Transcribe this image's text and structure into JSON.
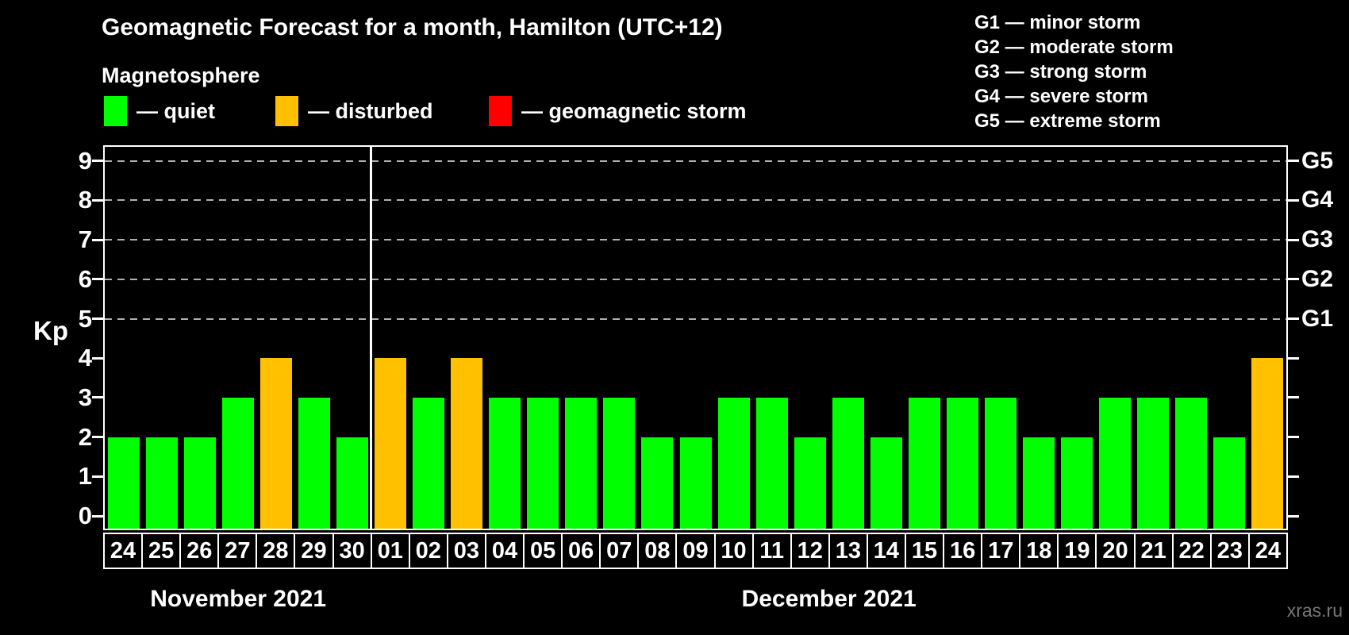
{
  "title": "Geomagnetic Forecast for a month, Hamilton (UTC+12)",
  "subtitle": "Magnetosphere",
  "watermark": "xras.ru",
  "colors": {
    "quiet": "#00ff00",
    "disturbed": "#ffc000",
    "storm": "#ff0000",
    "background": "#000000",
    "gridline": "#b0b0b0",
    "axis": "#ffffff",
    "watermark": "#777777"
  },
  "legend": {
    "items": [
      {
        "status": "quiet",
        "label": "— quiet"
      },
      {
        "status": "disturbed",
        "label": "— disturbed"
      },
      {
        "status": "storm",
        "label": "— geomagnetic storm"
      }
    ]
  },
  "g_legend": {
    "lines": [
      "G1 — minor storm",
      "G2 — moderate storm",
      "G3 — strong storm",
      "G4 — severe storm",
      "G5 — extreme storm"
    ]
  },
  "chart_data": {
    "type": "bar",
    "title": "Geomagnetic Forecast for a month, Hamilton (UTC+12)",
    "ylabel": "Kp",
    "ylim": [
      0,
      9
    ],
    "yticks": [
      0,
      1,
      2,
      3,
      4,
      5,
      6,
      7,
      8,
      9
    ],
    "grid": "horizontal dashed lines at Kp 5-9",
    "gridlines_at_kp": [
      5,
      6,
      7,
      8,
      9
    ],
    "right_axis_labels": [
      {
        "kp": 5,
        "label": "G1"
      },
      {
        "kp": 6,
        "label": "G2"
      },
      {
        "kp": 7,
        "label": "G3"
      },
      {
        "kp": 8,
        "label": "G4"
      },
      {
        "kp": 9,
        "label": "G5"
      }
    ],
    "legend_position": "top-left",
    "months": [
      {
        "label": "November 2021",
        "bars": [
          {
            "day": "24",
            "kp": 2,
            "status": "quiet"
          },
          {
            "day": "25",
            "kp": 2,
            "status": "quiet"
          },
          {
            "day": "26",
            "kp": 2,
            "status": "quiet"
          },
          {
            "day": "27",
            "kp": 3,
            "status": "quiet"
          },
          {
            "day": "28",
            "kp": 4,
            "status": "disturbed"
          },
          {
            "day": "29",
            "kp": 3,
            "status": "quiet"
          },
          {
            "day": "30",
            "kp": 2,
            "status": "quiet"
          }
        ]
      },
      {
        "label": "December 2021",
        "bars": [
          {
            "day": "01",
            "kp": 4,
            "status": "disturbed"
          },
          {
            "day": "02",
            "kp": 3,
            "status": "quiet"
          },
          {
            "day": "03",
            "kp": 4,
            "status": "disturbed"
          },
          {
            "day": "04",
            "kp": 3,
            "status": "quiet"
          },
          {
            "day": "05",
            "kp": 3,
            "status": "quiet"
          },
          {
            "day": "06",
            "kp": 3,
            "status": "quiet"
          },
          {
            "day": "07",
            "kp": 3,
            "status": "quiet"
          },
          {
            "day": "08",
            "kp": 2,
            "status": "quiet"
          },
          {
            "day": "09",
            "kp": 2,
            "status": "quiet"
          },
          {
            "day": "10",
            "kp": 3,
            "status": "quiet"
          },
          {
            "day": "11",
            "kp": 3,
            "status": "quiet"
          },
          {
            "day": "12",
            "kp": 2,
            "status": "quiet"
          },
          {
            "day": "13",
            "kp": 3,
            "status": "quiet"
          },
          {
            "day": "14",
            "kp": 2,
            "status": "quiet"
          },
          {
            "day": "15",
            "kp": 3,
            "status": "quiet"
          },
          {
            "day": "16",
            "kp": 3,
            "status": "quiet"
          },
          {
            "day": "17",
            "kp": 3,
            "status": "quiet"
          },
          {
            "day": "18",
            "kp": 2,
            "status": "quiet"
          },
          {
            "day": "19",
            "kp": 2,
            "status": "quiet"
          },
          {
            "day": "20",
            "kp": 3,
            "status": "quiet"
          },
          {
            "day": "21",
            "kp": 3,
            "status": "quiet"
          },
          {
            "day": "22",
            "kp": 3,
            "status": "quiet"
          },
          {
            "day": "23",
            "kp": 2,
            "status": "quiet"
          },
          {
            "day": "24",
            "kp": 4,
            "status": "disturbed"
          }
        ]
      }
    ]
  }
}
